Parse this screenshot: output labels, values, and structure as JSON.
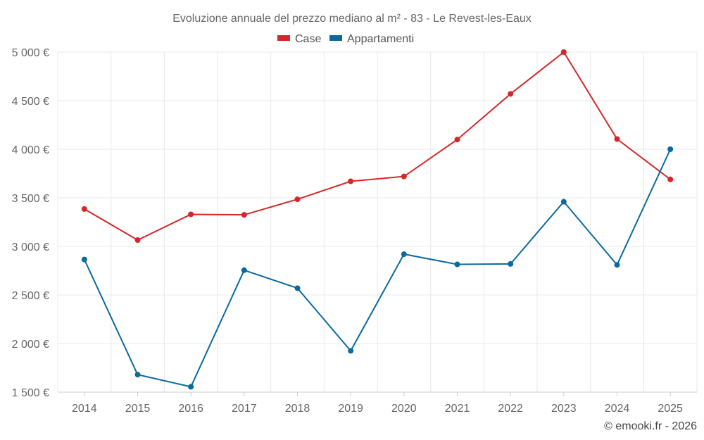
{
  "chart_data": {
    "type": "line",
    "title": "Evoluzione annuale del prezzo mediano al m² - 83 - Le Revest-les-Eaux",
    "categories": [
      "2014",
      "2015",
      "2016",
      "2017",
      "2018",
      "2019",
      "2020",
      "2021",
      "2022",
      "2023",
      "2024",
      "2025"
    ],
    "series": [
      {
        "name": "Case",
        "color": "#d62728",
        "values": [
          3385,
          3065,
          3330,
          3325,
          3485,
          3670,
          3720,
          4100,
          4570,
          5000,
          4105,
          3690
        ]
      },
      {
        "name": "Appartamenti",
        "color": "#0a6a9e",
        "values": [
          2865,
          1680,
          1555,
          2755,
          2570,
          1925,
          2920,
          2815,
          2820,
          3460,
          2810,
          4000
        ]
      }
    ],
    "y_ticks": [
      1500,
      2000,
      2500,
      3000,
      3500,
      4000,
      4500,
      5000
    ],
    "y_tick_labels": [
      "1 500 €",
      "2 000 €",
      "2 500 €",
      "3 000 €",
      "3 500 €",
      "4 000 €",
      "4 500 €",
      "5 000 €"
    ],
    "ylim": [
      1500,
      5000
    ],
    "xlabel": "",
    "ylabel": "",
    "grid": true,
    "legend_position": "top-center"
  },
  "credit": "© emooki.fr - 2026"
}
